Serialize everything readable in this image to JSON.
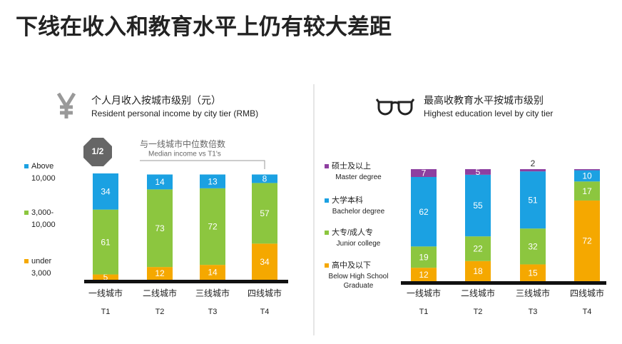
{
  "title": "下线在收入和教育水平上仍有较大差距",
  "chart_data": [
    {
      "type": "stacked_bar",
      "title": "个人月收入按城市级别（元）",
      "subtitle": "Resident personal income by city tier (RMB)",
      "annotation": {
        "badge": "1/2",
        "text": "与一线城市中位数倍数",
        "text_en": "Median income vs T1's"
      },
      "categories": [
        "一线城市",
        "二线城市",
        "三线城市",
        "四线城市"
      ],
      "category_codes": [
        "T1",
        "T2",
        "T3",
        "T4"
      ],
      "ylim": [
        0,
        100
      ],
      "series": [
        {
          "name": "under 3,000",
          "color": "#f5a800",
          "values": [
            5,
            12,
            14,
            34
          ]
        },
        {
          "name": "3,000-10,000",
          "color": "#8cc63f",
          "values": [
            61,
            73,
            72,
            57
          ]
        },
        {
          "name": "Above 10,000",
          "color": "#1ba1e2",
          "values": [
            34,
            14,
            13,
            8
          ]
        }
      ]
    },
    {
      "type": "stacked_bar",
      "title": "最高收教育水平按城市级别",
      "subtitle": "Highest education level by city tier",
      "categories": [
        "一线城市",
        "二线城市",
        "三线城市",
        "四线城市"
      ],
      "category_codes": [
        "T1",
        "T2",
        "T3",
        "T4"
      ],
      "ylim": [
        0,
        100
      ],
      "series": [
        {
          "name": "高中及以下",
          "name_en": "Below High School Graduate",
          "color": "#f5a800",
          "values": [
            12,
            18,
            15,
            72
          ]
        },
        {
          "name": "大专/成人专",
          "name_en": "Junior college",
          "color": "#8cc63f",
          "values": [
            19,
            22,
            32,
            17
          ]
        },
        {
          "name": "大学本科",
          "name_en": "Bachelor degree",
          "color": "#1ba1e2",
          "values": [
            62,
            55,
            51,
            10
          ]
        },
        {
          "name": "硕士及以上",
          "name_en": "Master degree",
          "color": "#8e3fa0",
          "values": [
            7,
            5,
            2,
            1
          ],
          "value_labels": [
            "7",
            "5",
            "2",
            null
          ]
        }
      ]
    }
  ]
}
